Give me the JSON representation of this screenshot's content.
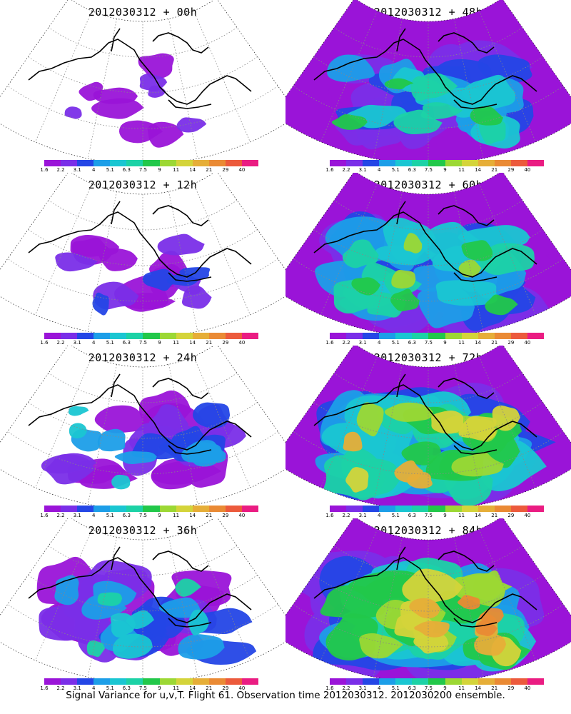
{
  "panels": [
    {
      "title": "2012030312 + 00h",
      "lead_hours": 0
    },
    {
      "title": "2012030312 + 48h",
      "lead_hours": 48
    },
    {
      "title": "2012030312 + 12h",
      "lead_hours": 12
    },
    {
      "title": "2012030312 + 60h",
      "lead_hours": 60
    },
    {
      "title": "2012030312 + 24h",
      "lead_hours": 24
    },
    {
      "title": "2012030312 + 72h",
      "lead_hours": 72
    },
    {
      "title": "2012030312 + 36h",
      "lead_hours": 36
    },
    {
      "title": "2012030312 + 84h",
      "lead_hours": 84
    }
  ],
  "colorbar": {
    "labels": [
      "1.6",
      "2.2",
      "3.1",
      "4",
      "5.1",
      "6.3",
      "7.5",
      "9",
      "11",
      "14",
      "21",
      "29",
      "40"
    ],
    "colors": [
      "#9a14d8",
      "#7a2ee8",
      "#2446e6",
      "#1c9ee8",
      "#1ac6d2",
      "#1cd2a6",
      "#22c84a",
      "#9cd834",
      "#d4d43a",
      "#e6ae38",
      "#ea8a34",
      "#ec5a3c",
      "#ea1c82"
    ]
  },
  "footer": "Signal Variance for u,v,T. Flight 61. Observation time 2012030312. 2012030200 ensemble."
}
